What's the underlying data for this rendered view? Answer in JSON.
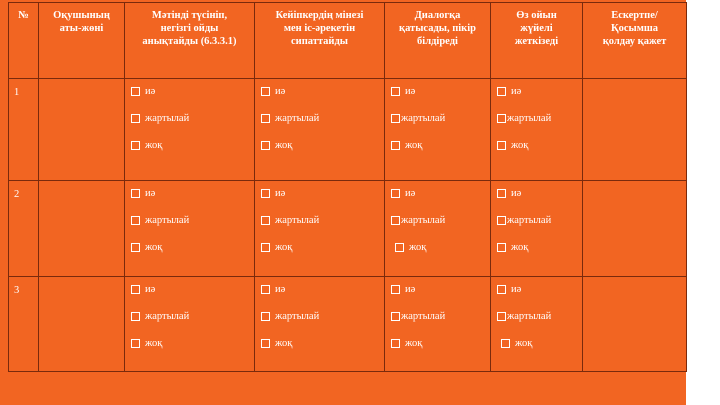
{
  "table": {
    "headers": [
      [
        "№"
      ],
      [
        "Оқушының",
        "аты-жөні"
      ],
      [
        "Мәтінді түсініп,",
        "негізгі ойды",
        "анықтайды (6.3.3.1)"
      ],
      [
        "Кейіпкердің мінезі",
        "мен іс-әрекетін",
        "сипаттайды"
      ],
      [
        "Диалогқа",
        "қатысады, пікір",
        "білдіреді"
      ],
      [
        "Өз ойын",
        "жүйелі",
        "жеткізеді"
      ],
      [
        "Ескертпе/",
        "Қосымша",
        "қолдау қажет"
      ]
    ],
    "rows": [
      {
        "num": "1",
        "student": "",
        "criteria": [
          [
            "иә",
            "жартылай",
            "жоқ"
          ],
          [
            "иә",
            "жартылай",
            "жоқ"
          ],
          [
            "иә",
            "жартылай",
            "жоқ"
          ],
          [
            "иә",
            "жартылай",
            "жоқ"
          ]
        ],
        "note": ""
      },
      {
        "num": "2",
        "student": "",
        "criteria": [
          [
            "иә",
            "жартылай",
            "жоқ"
          ],
          [
            "иә",
            "жартылай",
            "жоқ"
          ],
          [
            "иә",
            "жартылай",
            "жоқ"
          ],
          [
            "иә",
            "жартылай",
            "жоқ"
          ]
        ],
        "note": ""
      },
      {
        "num": "3",
        "student": "",
        "criteria": [
          [
            "иә",
            "жартылай",
            "жоқ"
          ],
          [
            "иә",
            "жартылай",
            "жоқ"
          ],
          [
            "иә",
            "жартылай",
            "жоқ"
          ],
          [
            "иә",
            "жартылай",
            "жоқ"
          ]
        ],
        "note": ""
      }
    ]
  },
  "colors": {
    "background": "#f26522",
    "text": "#ffffff",
    "border": "#7a2a0c"
  }
}
